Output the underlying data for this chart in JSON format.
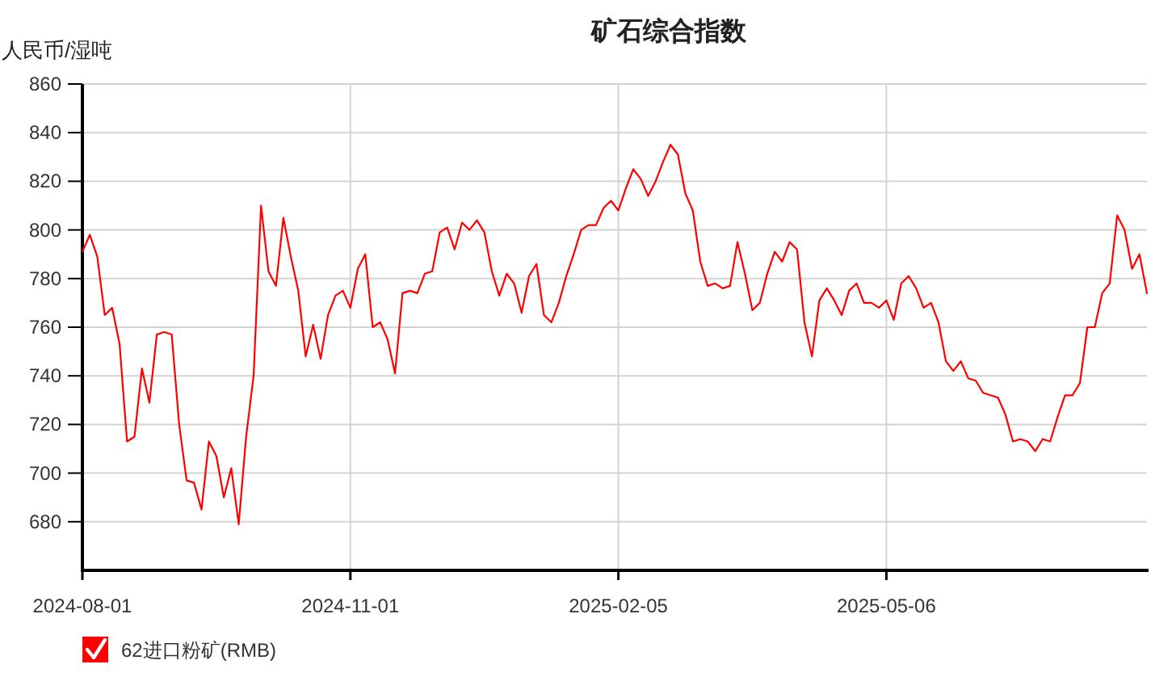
{
  "chart_data": {
    "type": "line",
    "title": "矿石综合指数",
    "ylabel": "人民币/湿吨",
    "categories": [
      "2024-08-01",
      null,
      null,
      null,
      null,
      null,
      null,
      null,
      null,
      null,
      null,
      null,
      null,
      null,
      null,
      null,
      null,
      null,
      null,
      null,
      null,
      null,
      null,
      null,
      null,
      null,
      null,
      null,
      null,
      null,
      null,
      null,
      null,
      null,
      null,
      null,
      "2024-11-01",
      null,
      null,
      null,
      null,
      null,
      null,
      null,
      null,
      null,
      null,
      null,
      null,
      null,
      null,
      null,
      null,
      null,
      null,
      null,
      null,
      null,
      null,
      null,
      null,
      null,
      null,
      null,
      null,
      null,
      null,
      null,
      null,
      null,
      null,
      null,
      "2025-02-05",
      null,
      null,
      null,
      null,
      null,
      null,
      null,
      null,
      null,
      null,
      null,
      null,
      null,
      null,
      null,
      null,
      null,
      null,
      null,
      null,
      null,
      null,
      null,
      null,
      null,
      null,
      null,
      null,
      null,
      null,
      null,
      null,
      null,
      null,
      null,
      "2025-05-06",
      null,
      null,
      null,
      null,
      null,
      null,
      null,
      null,
      null,
      null,
      null,
      null,
      null,
      null,
      null,
      null,
      null,
      null,
      null,
      null,
      null,
      null,
      null,
      null,
      null,
      null,
      null,
      null,
      null,
      null,
      null,
      null,
      null,
      null,
      null
    ],
    "series": [
      {
        "name": "62进口粉矿(RMB)",
        "color": "#ff0000",
        "values": [
          791,
          798,
          789,
          765,
          768,
          753,
          713,
          715,
          743,
          729,
          757,
          758,
          757,
          720,
          697,
          696,
          685,
          713,
          707,
          690,
          702,
          679,
          715,
          740,
          810,
          783,
          777,
          805,
          789,
          775,
          748,
          761,
          747,
          765,
          773,
          775,
          768,
          784,
          790,
          760,
          762,
          755,
          741,
          774,
          775,
          774,
          782,
          783,
          799,
          801,
          792,
          803,
          800,
          804,
          799,
          783,
          773,
          782,
          778,
          766,
          781,
          786,
          765,
          762,
          770,
          781,
          790,
          800,
          802,
          802,
          809,
          812,
          808,
          817,
          825,
          821,
          814,
          820,
          828,
          835,
          831,
          815,
          808,
          787,
          777,
          778,
          776,
          777,
          795,
          782,
          767,
          770,
          782,
          791,
          787,
          795,
          792,
          762,
          748,
          771,
          776,
          771,
          765,
          775,
          778,
          770,
          770,
          768,
          771,
          763,
          778,
          781,
          776,
          768,
          770,
          762,
          746,
          742,
          746,
          739,
          738,
          733,
          732,
          731,
          724,
          713,
          714,
          713,
          709,
          714,
          713,
          723,
          732,
          732,
          737,
          760,
          760,
          774,
          778,
          806,
          800,
          784,
          790,
          774
        ]
      }
    ],
    "ylim": [
      660,
      860
    ],
    "yticks": [
      680,
      700,
      720,
      740,
      760,
      780,
      800,
      820,
      840,
      860
    ],
    "grid": true,
    "legend": "bottom left"
  }
}
